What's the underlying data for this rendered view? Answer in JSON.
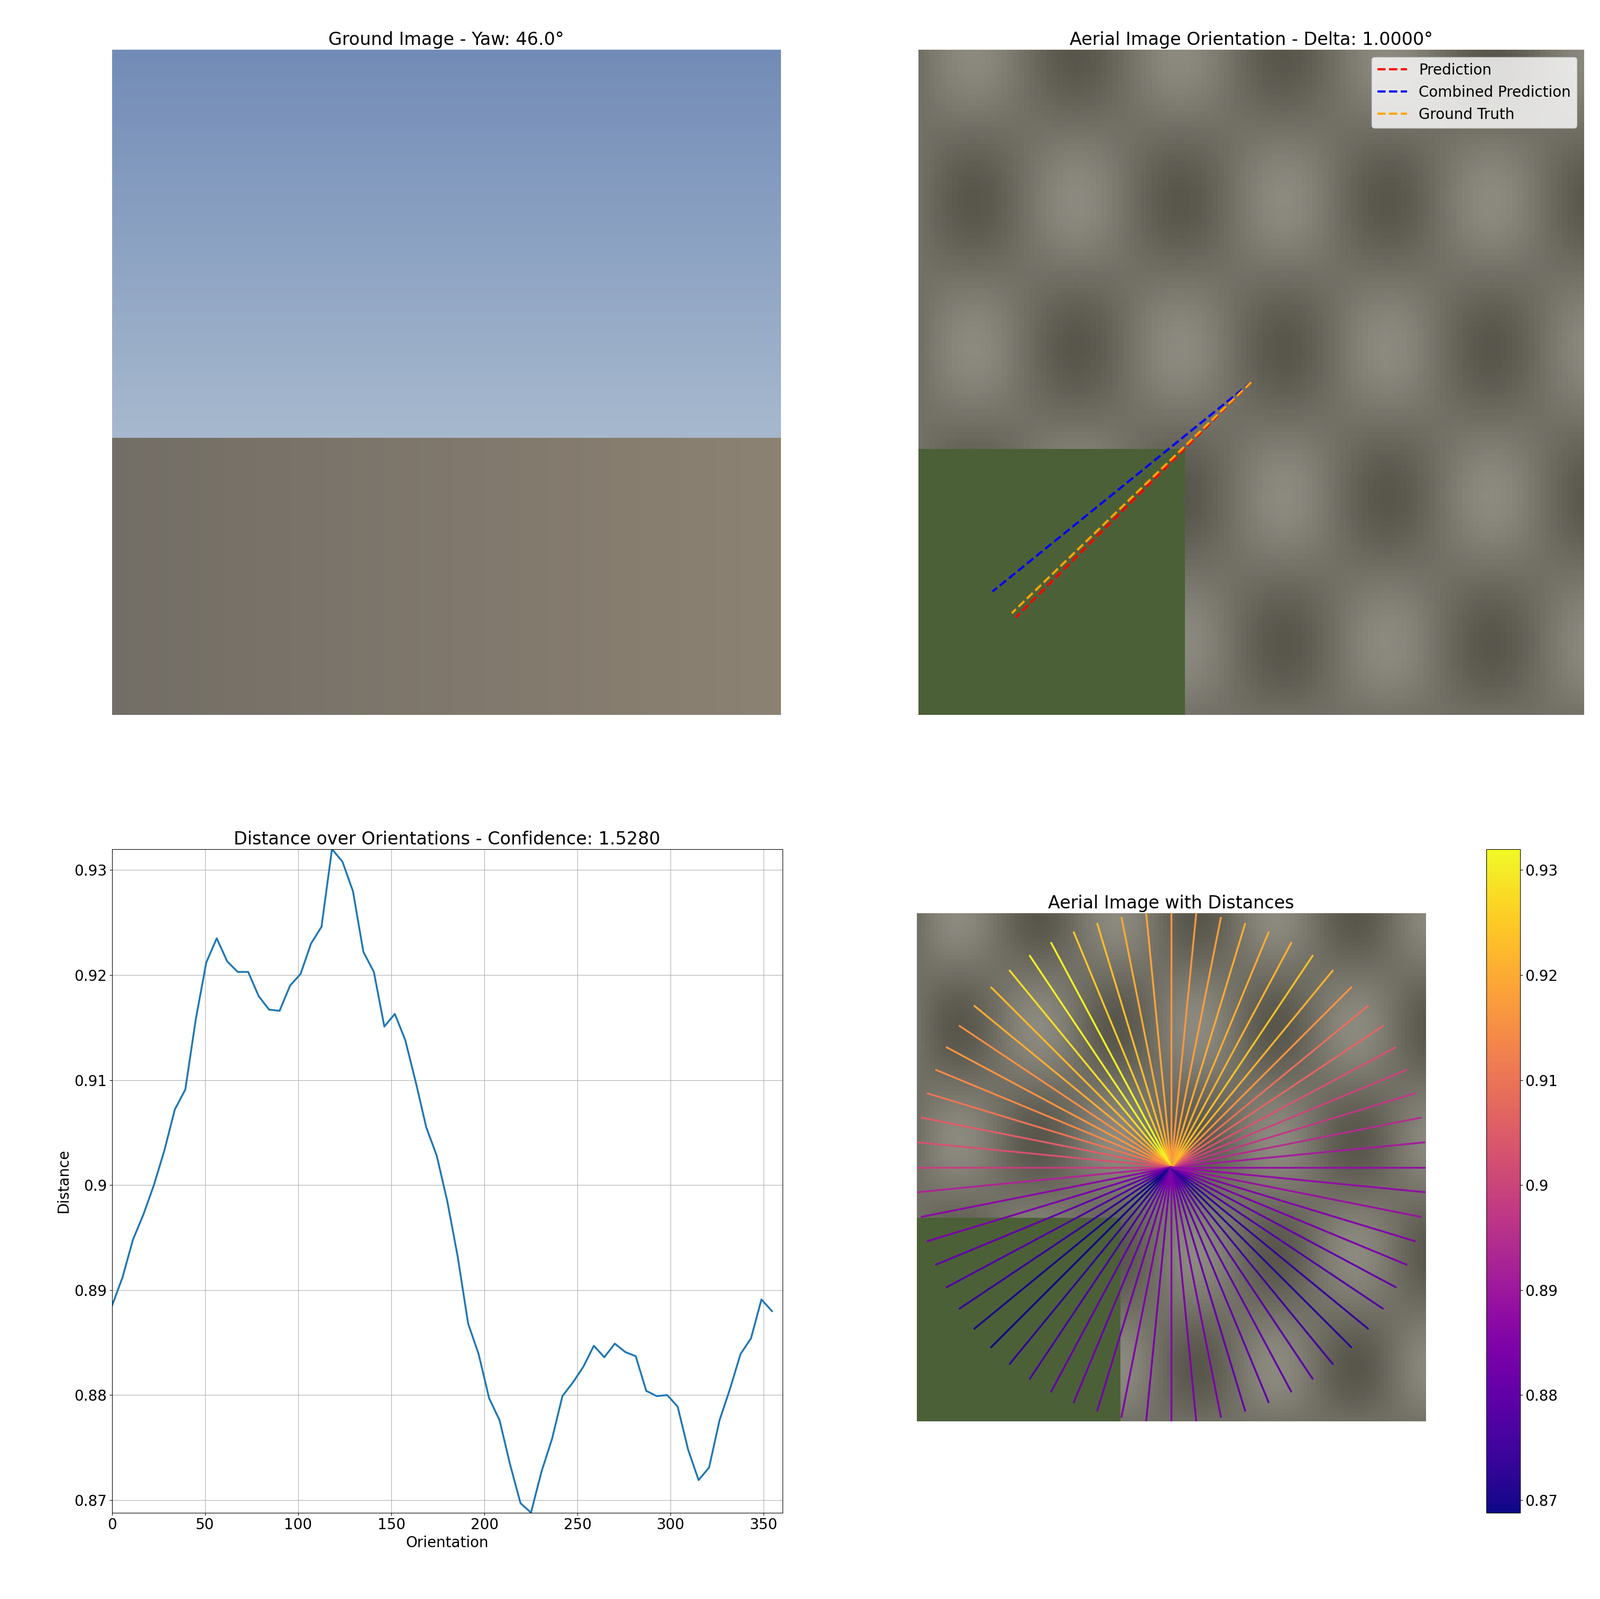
{
  "chart_data": [
    {
      "type": "image",
      "title": "Ground Image - Yaw: 46.0°"
    },
    {
      "type": "image",
      "title": "Aerial Image Orientation - Delta: 1.0000°",
      "legend": "upper right",
      "series": [
        {
          "name": "Prediction",
          "color": "red",
          "line_style": "dashed",
          "angle": 225
        },
        {
          "name": "Combined Prediction",
          "color": "blue",
          "line_style": "dashed",
          "angle": 219
        },
        {
          "name": "Ground Truth",
          "color": "orange",
          "line_style": "dashed",
          "angle": 224
        }
      ]
    },
    {
      "type": "line",
      "title": "Distance over Orientations - Confidence: 1.5280",
      "x_label": "Orientation",
      "y_label": "Distance",
      "color": "#1f77b4",
      "grid": true,
      "x": [
        0,
        5.625,
        11.25,
        16.875,
        22.5,
        28.125,
        33.75,
        39.375,
        45,
        50.625,
        56.25,
        61.875,
        67.5,
        73.125,
        78.75,
        84.375,
        90,
        95.625,
        101.25,
        106.875,
        112.5,
        118.125,
        123.75,
        129.375,
        135,
        140.625,
        146.25,
        151.875,
        157.5,
        163.125,
        168.75,
        174.375,
        180,
        185.625,
        191.25,
        196.875,
        202.5,
        208.125,
        213.75,
        219.375,
        225,
        230.625,
        236.25,
        241.875,
        247.5,
        253.125,
        258.75,
        264.375,
        270,
        275.625,
        281.25,
        286.875,
        292.5,
        298.125,
        303.75,
        309.375,
        315,
        320.625,
        326.25,
        331.875,
        337.5,
        343.125,
        348.75,
        354.375
      ],
      "values": [
        0.8885,
        0.8912,
        0.8948,
        0.8972,
        0.9,
        0.9033,
        0.9072,
        0.9091,
        0.9158,
        0.9212,
        0.9235,
        0.9213,
        0.9203,
        0.9203,
        0.918,
        0.9167,
        0.9166,
        0.919,
        0.9201,
        0.923,
        0.9246,
        0.932,
        0.9308,
        0.928,
        0.9222,
        0.9203,
        0.9151,
        0.9163,
        0.9138,
        0.9098,
        0.9055,
        0.9028,
        0.8985,
        0.8932,
        0.8868,
        0.8839,
        0.8797,
        0.8776,
        0.8734,
        0.8697,
        0.8688,
        0.8727,
        0.8758,
        0.8799,
        0.8812,
        0.8827,
        0.8847,
        0.8836,
        0.8849,
        0.8841,
        0.8837,
        0.8804,
        0.8799,
        0.88,
        0.8789,
        0.8748,
        0.8719,
        0.8731,
        0.8776,
        0.8806,
        0.8839,
        0.8854,
        0.8891,
        0.888
      ],
      "xlim": [
        0,
        360
      ],
      "xticks": [
        0,
        50,
        100,
        150,
        200,
        250,
        300,
        350
      ],
      "ylim": [
        0.8688,
        0.932
      ],
      "yticks": [
        0.87,
        0.88,
        0.89,
        0.9,
        0.91,
        0.92,
        0.93
      ]
    },
    {
      "type": "image",
      "title": "Aerial Image with Distances",
      "colorbar_range": [
        0.8688,
        0.932
      ],
      "colorbar_ticks": [
        0.87,
        0.88,
        0.89,
        0.9,
        0.91,
        0.92,
        0.93
      ]
    }
  ]
}
